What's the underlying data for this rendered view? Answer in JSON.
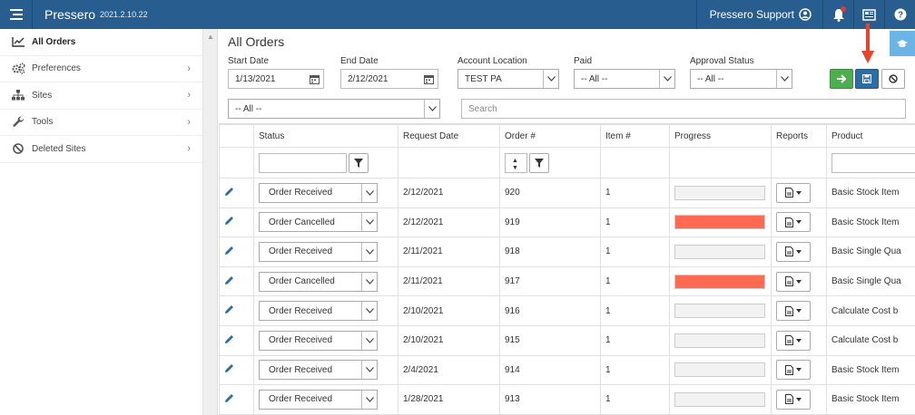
{
  "app": {
    "brand": "Pressero",
    "version": "2021.2.10.22",
    "support_label": "Pressero Support"
  },
  "colors": {
    "topbar": "#275d8f",
    "accent_blue": "#2e6da4",
    "go_green": "#4cae4c",
    "cancelled_progress": "#ff6a50",
    "annotation_arrow": "#e8432c"
  },
  "sidebar": {
    "items": [
      {
        "label": "All Orders",
        "icon": "line-chart-icon",
        "active": true
      },
      {
        "label": "Preferences",
        "icon": "gears-icon"
      },
      {
        "label": "Sites",
        "icon": "sitemap-icon"
      },
      {
        "label": "Tools",
        "icon": "wrench-icon"
      },
      {
        "label": "Deleted Sites",
        "icon": "ban-icon"
      }
    ]
  },
  "page": {
    "title": "All Orders"
  },
  "filters": {
    "start_date_label": "Start Date",
    "start_date": "1/13/2021",
    "end_date_label": "End Date",
    "end_date": "2/12/2021",
    "account_location_label": "Account Location",
    "account_location": "TEST PA",
    "paid_label": "Paid",
    "paid": "-- All --",
    "approval_status_label": "Approval Status",
    "approval_status": "-- All --",
    "second_select": "-- All --",
    "search_placeholder": "Search"
  },
  "grid": {
    "columns": [
      "",
      "Status",
      "Request Date",
      "Order #",
      "Item #",
      "Progress",
      "Reports",
      "Product"
    ],
    "rows": [
      {
        "status": "Order Received",
        "request_date": "2/12/2021",
        "order": "920",
        "item": "1",
        "progress": 0,
        "product": "Basic Stock Item"
      },
      {
        "status": "Order Cancelled",
        "request_date": "2/12/2021",
        "order": "919",
        "item": "1",
        "progress": 1,
        "product": "Basic Stock Item"
      },
      {
        "status": "Order Received",
        "request_date": "2/11/2021",
        "order": "918",
        "item": "1",
        "progress": 0,
        "product": "Basic Single Qua"
      },
      {
        "status": "Order Cancelled",
        "request_date": "2/11/2021",
        "order": "917",
        "item": "1",
        "progress": 1,
        "product": "Basic Single Qua"
      },
      {
        "status": "Order Received",
        "request_date": "2/10/2021",
        "order": "916",
        "item": "1",
        "progress": 0,
        "product": "Calculate Cost b"
      },
      {
        "status": "Order Received",
        "request_date": "2/10/2021",
        "order": "915",
        "item": "1",
        "progress": 0,
        "product": "Calculate Cost b"
      },
      {
        "status": "Order Received",
        "request_date": "2/4/2021",
        "order": "914",
        "item": "1",
        "progress": 0,
        "product": "Basic Stock Item"
      },
      {
        "status": "Order Received",
        "request_date": "1/28/2021",
        "order": "913",
        "item": "1",
        "progress": 0,
        "product": "Basic Stock Item"
      }
    ]
  }
}
